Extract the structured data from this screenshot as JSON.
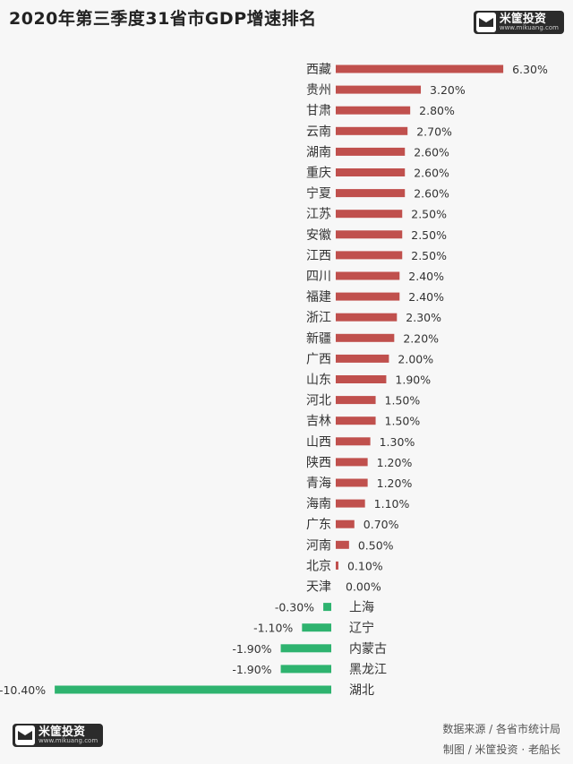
{
  "title": "2020年第三季度31省市GDP增速排名",
  "brand": {
    "name": "米筐投资",
    "url": "www.mikuang.com"
  },
  "footer": {
    "source": "数据来源 / 各省市统计局",
    "credit": "制图 / 米筐投资 · 老船长"
  },
  "colors": {
    "positive": "#c0504d",
    "negative": "#2eb36f",
    "text": "#333333"
  },
  "chart_data": {
    "type": "bar",
    "orientation": "horizontal",
    "title": "2020年第三季度31省市GDP增速排名",
    "xlabel": "",
    "ylabel": "",
    "grid": false,
    "categories": [
      "西藏",
      "贵州",
      "甘肃",
      "云南",
      "湖南",
      "重庆",
      "宁夏",
      "江苏",
      "安徽",
      "江西",
      "四川",
      "福建",
      "浙江",
      "新疆",
      "广西",
      "山东",
      "河北",
      "吉林",
      "山西",
      "陕西",
      "青海",
      "海南",
      "广东",
      "河南",
      "北京",
      "天津",
      "上海",
      "辽宁",
      "内蒙古",
      "黑龙江",
      "湖北"
    ],
    "values": [
      6.3,
      3.2,
      2.8,
      2.7,
      2.6,
      2.6,
      2.6,
      2.5,
      2.5,
      2.5,
      2.4,
      2.4,
      2.3,
      2.2,
      2.0,
      1.9,
      1.5,
      1.5,
      1.3,
      1.2,
      1.2,
      1.1,
      0.7,
      0.5,
      0.1,
      0.0,
      -0.3,
      -1.1,
      -1.9,
      -1.9,
      -10.4
    ],
    "labels": [
      "6.30%",
      "3.20%",
      "2.80%",
      "2.70%",
      "2.60%",
      "2.60%",
      "2.60%",
      "2.50%",
      "2.50%",
      "2.50%",
      "2.40%",
      "2.40%",
      "2.30%",
      "2.20%",
      "2.00%",
      "1.90%",
      "1.50%",
      "1.50%",
      "1.30%",
      "1.20%",
      "1.20%",
      "1.10%",
      "0.70%",
      "0.50%",
      "0.10%",
      "0.00%",
      "-0.30%",
      "-1.10%",
      "-1.90%",
      "-1.90%",
      "-10.40%"
    ]
  }
}
